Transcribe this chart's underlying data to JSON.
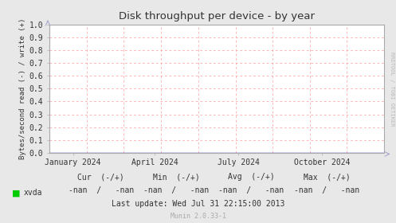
{
  "title": "Disk throughput per device - by year",
  "ylabel": "Bytes/second read (-) / write (+)",
  "bg_color": "#e8e8e8",
  "plot_bg_color": "#ffffff",
  "grid_color": "#ff9999",
  "axis_color": "#aaaaaa",
  "ylim": [
    0.0,
    1.0
  ],
  "yticks": [
    0.0,
    0.1,
    0.2,
    0.3,
    0.4,
    0.5,
    0.6,
    0.7,
    0.8,
    0.9,
    1.0
  ],
  "xtick_labels": [
    "January 2024",
    "April 2024",
    "July 2024",
    "October 2024"
  ],
  "xtick_positions": [
    0.07,
    0.315,
    0.565,
    0.815
  ],
  "legend_entry": "xvda",
  "legend_color": "#00cc00",
  "cur_label": "Cur  (-/+)",
  "min_label": "Min  (-/+)",
  "avg_label": "Avg  (-/+)",
  "max_label": "Max  (-/+)",
  "cur_val": "-nan  /   -nan",
  "min_val": "-nan  /   -nan",
  "avg_val": "-nan  /   -nan",
  "max_val": "-nan  /   -nan",
  "last_update": "Last update: Wed Jul 31 22:15:00 2013",
  "munin_version": "Munin 2.0.33-1",
  "right_label": "RRDTOOL / TOBI OETIKER",
  "line_color": "#0000cc",
  "line_y": 0.0,
  "arrow_color": "#aaaacc",
  "vgrid_positions": [
    0.0,
    0.111,
    0.222,
    0.333,
    0.444,
    0.556,
    0.667,
    0.778,
    0.889,
    1.0
  ]
}
